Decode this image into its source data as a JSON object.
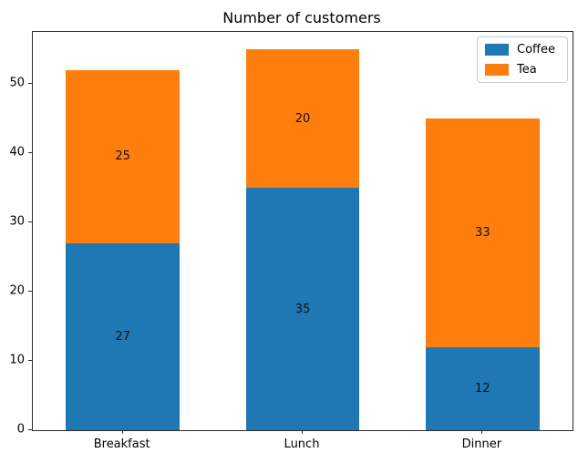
{
  "chart_data": {
    "type": "bar",
    "stacked": true,
    "title": "Number of customers",
    "categories": [
      "Breakfast",
      "Lunch",
      "Dinner"
    ],
    "series": [
      {
        "name": "Coffee",
        "color": "#1f77b4",
        "values": [
          27,
          35,
          12
        ]
      },
      {
        "name": "Tea",
        "color": "#ff7f0e",
        "values": [
          25,
          20,
          33
        ]
      }
    ],
    "bar_value_labels": {
      "Coffee": [
        "27",
        "35",
        "12"
      ],
      "Tea": [
        "25",
        "20",
        "33"
      ]
    },
    "yticks": [
      0,
      10,
      20,
      30,
      40,
      50
    ],
    "ylim": [
      0,
      57.5
    ],
    "xlabel": "",
    "ylabel": "",
    "grid": false,
    "legend_position": "upper right",
    "legend_entries": [
      "Coffee",
      "Tea"
    ],
    "colors": {
      "coffee_blue": "#1f77b4",
      "tea_orange": "#ff7f0e",
      "axis": "#2b2b2b",
      "background": "#ffffff",
      "text": "#000000"
    }
  }
}
